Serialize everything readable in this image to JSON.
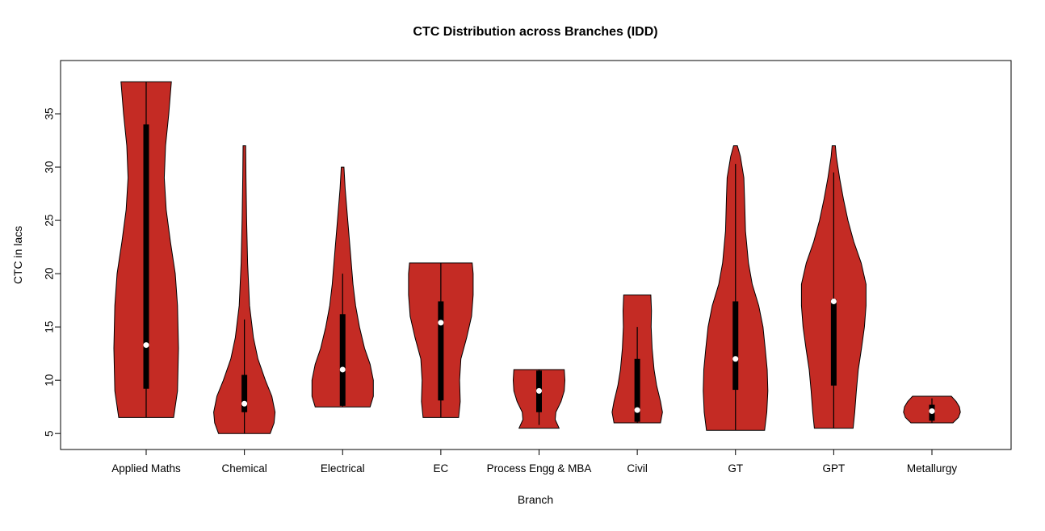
{
  "title": "CTC Distribution across Branches (IDD)",
  "colors": {
    "violin_fill": "#C42B24",
    "violin_stroke": "#000000",
    "box_fill": "#000000",
    "median_dot": "#FFFFFF",
    "axis": "#000000",
    "background": "#FFFFFF"
  },
  "chart_data": {
    "type": "violin",
    "title": "CTC Distribution across Branches (IDD)",
    "xlabel": "Branch",
    "ylabel": "CTC in lacs",
    "ylim": [
      3.5,
      40
    ],
    "y_ticks": [
      5,
      10,
      15,
      20,
      25,
      30,
      35
    ],
    "grid": false,
    "legend": "none",
    "categories": [
      "Applied Maths",
      "Chemical",
      "Electrical",
      "EC",
      "Process Engg & MBA",
      "Civil",
      "GT",
      "GPT",
      "Metallurgy"
    ],
    "series": [
      {
        "name": "Applied Maths",
        "min": 6.5,
        "max": 38,
        "q1": 9.2,
        "q3": 34,
        "median": 13.3,
        "whisker_low": 6.5,
        "whisker_high": 38,
        "profile": [
          [
            6.5,
            0.85
          ],
          [
            9,
            0.97
          ],
          [
            13,
            1.0
          ],
          [
            17,
            0.97
          ],
          [
            20,
            0.9
          ],
          [
            23,
            0.75
          ],
          [
            26,
            0.62
          ],
          [
            29,
            0.56
          ],
          [
            32,
            0.6
          ],
          [
            35,
            0.7
          ],
          [
            38,
            0.78
          ]
        ]
      },
      {
        "name": "Chemical",
        "min": 5,
        "max": 32,
        "q1": 7,
        "q3": 10.5,
        "median": 7.8,
        "whisker_low": 5,
        "whisker_high": 15.7,
        "profile": [
          [
            5,
            0.8
          ],
          [
            6,
            0.92
          ],
          [
            7,
            0.95
          ],
          [
            8.5,
            0.85
          ],
          [
            10,
            0.65
          ],
          [
            12,
            0.42
          ],
          [
            14,
            0.28
          ],
          [
            17,
            0.16
          ],
          [
            21,
            0.1
          ],
          [
            25,
            0.07
          ],
          [
            29,
            0.05
          ],
          [
            32,
            0.04
          ]
        ]
      },
      {
        "name": "Electrical",
        "min": 7.5,
        "max": 30,
        "q1": 7.6,
        "q3": 16.2,
        "median": 11,
        "whisker_low": 7.5,
        "whisker_high": 20,
        "profile": [
          [
            7.5,
            0.85
          ],
          [
            8.5,
            0.95
          ],
          [
            10,
            0.95
          ],
          [
            11.5,
            0.85
          ],
          [
            13,
            0.68
          ],
          [
            15,
            0.52
          ],
          [
            17,
            0.4
          ],
          [
            19,
            0.32
          ],
          [
            22,
            0.24
          ],
          [
            25,
            0.16
          ],
          [
            28,
            0.08
          ],
          [
            30,
            0.04
          ]
        ]
      },
      {
        "name": "EC",
        "min": 6.5,
        "max": 21,
        "q1": 8.1,
        "q3": 17.4,
        "median": 15.4,
        "whisker_low": 6.5,
        "whisker_high": 21,
        "profile": [
          [
            6.5,
            0.55
          ],
          [
            8,
            0.6
          ],
          [
            10,
            0.58
          ],
          [
            12,
            0.62
          ],
          [
            14,
            0.8
          ],
          [
            16,
            0.95
          ],
          [
            18,
            1.0
          ],
          [
            20,
            1.0
          ],
          [
            21,
            0.97
          ]
        ]
      },
      {
        "name": "Process Engg & MBA",
        "min": 5.5,
        "max": 11,
        "q1": 7,
        "q3": 10.9,
        "median": 9,
        "whisker_low": 5.8,
        "whisker_high": 11,
        "profile": [
          [
            5.5,
            0.62
          ],
          [
            6.3,
            0.5
          ],
          [
            7,
            0.52
          ],
          [
            8,
            0.68
          ],
          [
            9,
            0.78
          ],
          [
            10,
            0.8
          ],
          [
            11,
            0.78
          ]
        ]
      },
      {
        "name": "Civil",
        "min": 6,
        "max": 18,
        "q1": 6.1,
        "q3": 12,
        "median": 7.2,
        "whisker_low": 6,
        "whisker_high": 15,
        "profile": [
          [
            6,
            0.72
          ],
          [
            7,
            0.78
          ],
          [
            8,
            0.72
          ],
          [
            9.5,
            0.6
          ],
          [
            11,
            0.52
          ],
          [
            13,
            0.46
          ],
          [
            15,
            0.43
          ],
          [
            16.5,
            0.44
          ],
          [
            18,
            0.42
          ]
        ]
      },
      {
        "name": "GT",
        "min": 5.3,
        "max": 32,
        "q1": 9.1,
        "q3": 17.4,
        "median": 12,
        "whisker_low": 5.3,
        "whisker_high": 30.3,
        "profile": [
          [
            5.3,
            0.9
          ],
          [
            7,
            0.97
          ],
          [
            9,
            1.0
          ],
          [
            11,
            0.98
          ],
          [
            13,
            0.92
          ],
          [
            15,
            0.85
          ],
          [
            17,
            0.72
          ],
          [
            19,
            0.52
          ],
          [
            21,
            0.4
          ],
          [
            24,
            0.31
          ],
          [
            27,
            0.28
          ],
          [
            29,
            0.26
          ],
          [
            31,
            0.15
          ],
          [
            32,
            0.06
          ]
        ]
      },
      {
        "name": "GPT",
        "min": 5.5,
        "max": 32,
        "q1": 9.5,
        "q3": 17.6,
        "median": 17.4,
        "whisker_low": 5.5,
        "whisker_high": 29.5,
        "profile": [
          [
            5.5,
            0.6
          ],
          [
            7,
            0.65
          ],
          [
            9,
            0.7
          ],
          [
            11,
            0.76
          ],
          [
            13,
            0.86
          ],
          [
            15,
            0.95
          ],
          [
            17,
            1.0
          ],
          [
            19,
            1.0
          ],
          [
            21,
            0.85
          ],
          [
            23,
            0.62
          ],
          [
            25,
            0.44
          ],
          [
            27,
            0.3
          ],
          [
            29,
            0.18
          ],
          [
            31,
            0.08
          ],
          [
            32,
            0.05
          ]
        ]
      },
      {
        "name": "Metallurgy",
        "min": 6,
        "max": 8.5,
        "q1": 6.2,
        "q3": 7.7,
        "median": 7.1,
        "whisker_low": 6,
        "whisker_high": 8.3,
        "profile": [
          [
            6,
            0.65
          ],
          [
            6.5,
            0.82
          ],
          [
            7,
            0.88
          ],
          [
            7.5,
            0.85
          ],
          [
            8,
            0.75
          ],
          [
            8.5,
            0.6
          ]
        ]
      }
    ]
  }
}
